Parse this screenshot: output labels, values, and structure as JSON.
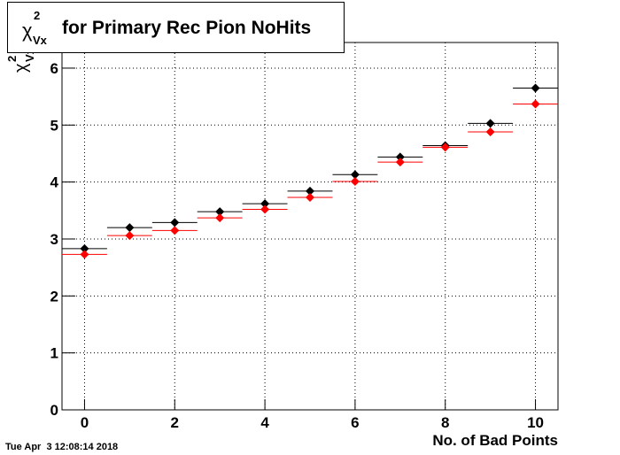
{
  "chart_data": {
    "type": "scatter",
    "title": {
      "symbol": "χ",
      "sup": "2",
      "sub": "Vx",
      "text": "for Primary Rec Pion NoHits"
    },
    "y_label": {
      "symbol": "χ",
      "sup": "2",
      "sub": "Vx"
    },
    "x_label": "No. of Bad Points",
    "timestamp": "Tue Apr  3 12:08:14 2018",
    "x": [
      0,
      1,
      2,
      3,
      4,
      5,
      6,
      7,
      8,
      9,
      10
    ],
    "xerr": 0.5,
    "series": [
      {
        "color": "#000000",
        "values": [
          2.83,
          3.2,
          3.29,
          3.48,
          3.62,
          3.84,
          4.13,
          4.44,
          4.64,
          5.03,
          5.65
        ]
      },
      {
        "color": "#ff0000",
        "values": [
          2.73,
          3.06,
          3.15,
          3.37,
          3.52,
          3.73,
          4.01,
          4.35,
          4.61,
          4.88,
          5.37
        ]
      }
    ],
    "xlim": [
      -0.5,
      10.5
    ],
    "xticks": [
      0,
      2,
      4,
      6,
      8,
      10
    ],
    "ylim": [
      0,
      6.45
    ],
    "yticks": [
      0,
      1,
      2,
      3,
      4,
      5,
      6
    ],
    "grid": true
  }
}
